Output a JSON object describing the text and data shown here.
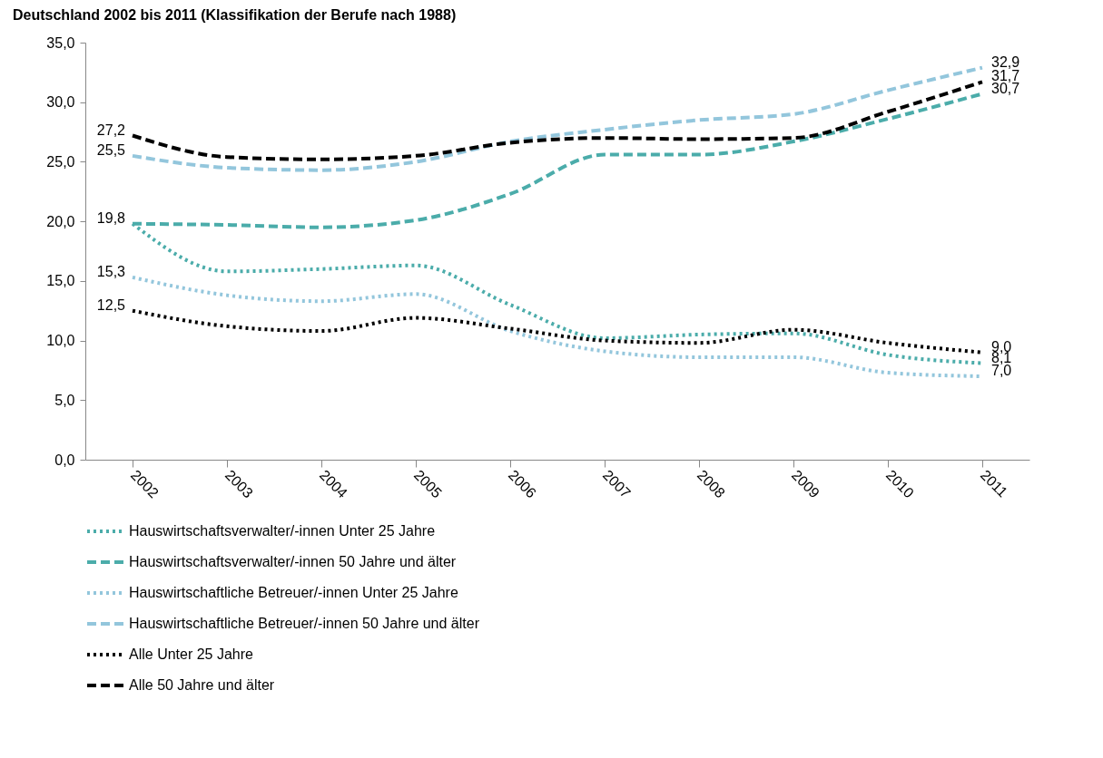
{
  "chart_data": {
    "type": "line",
    "title": "Deutschland 2002 bis 2011 (Klassifikation der Berufe nach 1988)",
    "categories": [
      "2002",
      "2003",
      "2004",
      "2005",
      "2006",
      "2007",
      "2008",
      "2009",
      "2010",
      "2011"
    ],
    "ylim": [
      0,
      35
    ],
    "yticks": [
      {
        "value": 0,
        "label": "0,0"
      },
      {
        "value": 5,
        "label": "5,0"
      },
      {
        "value": 10,
        "label": "10,0"
      },
      {
        "value": 15,
        "label": "15,0"
      },
      {
        "value": 20,
        "label": "20,0"
      },
      {
        "value": 25,
        "label": "25,0"
      },
      {
        "value": 30,
        "label": "30,0"
      },
      {
        "value": 35,
        "label": "35,0"
      }
    ],
    "grid": false,
    "legend": "bottom",
    "series": [
      {
        "name": "Hauswirtschaftsverwalter/-innen Unter 25 Jahre",
        "color": "#4bacaa",
        "line_style": "dotted",
        "values": [
          19.8,
          15.8,
          16.0,
          16.3,
          13.0,
          10.2,
          10.5,
          10.6,
          8.8,
          8.1
        ],
        "value_labels": [
          null,
          null,
          null,
          null,
          null,
          null,
          null,
          null,
          null,
          "8,1"
        ]
      },
      {
        "name": "Hauswirtschaftsverwalter/-innen 50 Jahre und älter",
        "color": "#4bacaa",
        "line_style": "dashed",
        "values": [
          19.8,
          19.7,
          19.5,
          20.1,
          22.3,
          25.6,
          25.6,
          26.7,
          28.6,
          30.7
        ],
        "value_labels": [
          "19,8",
          null,
          null,
          null,
          null,
          null,
          null,
          null,
          null,
          "30,7"
        ]
      },
      {
        "name": "Hauswirtschaftliche Betreuer/-innen Unter 25 Jahre",
        "color": "#93c6dc",
        "line_style": "dotted",
        "values": [
          15.3,
          13.8,
          13.3,
          13.9,
          10.8,
          9.1,
          8.6,
          8.6,
          7.3,
          7.0
        ],
        "value_labels": [
          "15,3",
          null,
          null,
          null,
          null,
          null,
          null,
          null,
          null,
          "7,0"
        ]
      },
      {
        "name": "Hauswirtschaftliche Betreuer/-innen 50 Jahre und älter",
        "color": "#93c6dc",
        "line_style": "dashed",
        "values": [
          25.5,
          24.5,
          24.3,
          25.0,
          26.7,
          27.7,
          28.5,
          29.0,
          31.0,
          32.9
        ],
        "value_labels": [
          "25,5",
          null,
          null,
          null,
          null,
          null,
          null,
          null,
          null,
          "32,9"
        ]
      },
      {
        "name": "Alle Unter 25 Jahre",
        "color": "#000000",
        "line_style": "dotted",
        "values": [
          12.5,
          11.2,
          10.8,
          11.9,
          11.0,
          10.0,
          9.8,
          10.9,
          9.8,
          9.0
        ],
        "value_labels": [
          "12,5",
          null,
          null,
          null,
          null,
          null,
          null,
          null,
          null,
          "9,0"
        ]
      },
      {
        "name": "Alle 50 Jahre und älter",
        "color": "#000000",
        "line_style": "dashed",
        "values": [
          27.2,
          25.4,
          25.2,
          25.5,
          26.6,
          27.0,
          26.9,
          27.0,
          29.2,
          31.7
        ],
        "value_labels": [
          "27,2",
          null,
          null,
          null,
          null,
          null,
          null,
          null,
          null,
          "31,7"
        ]
      }
    ]
  }
}
